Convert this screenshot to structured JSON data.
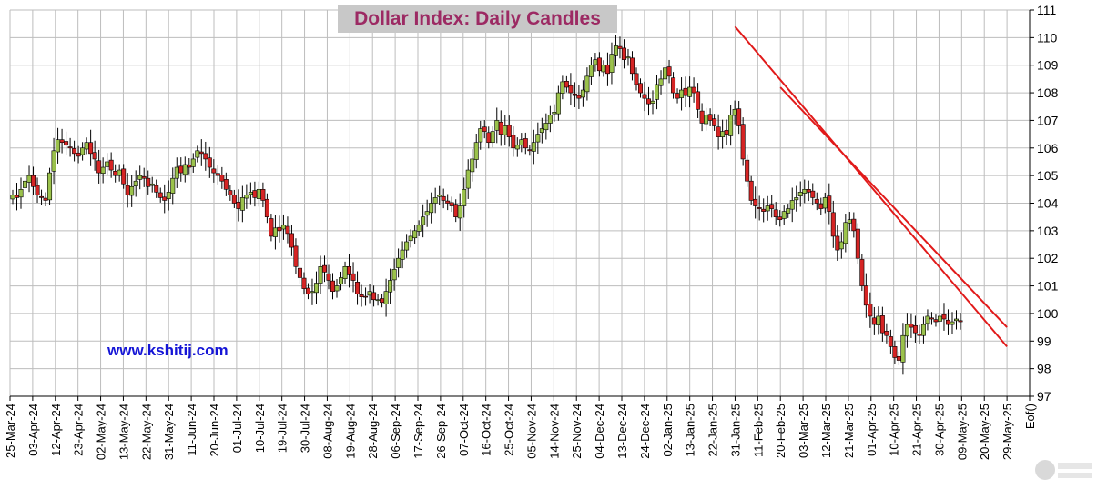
{
  "chart_data": {
    "type": "candlestick",
    "title": "Dollar Index: Daily Candles",
    "annotation": "www.kshitij.com",
    "ylim": [
      97,
      111
    ],
    "yticks": [
      97,
      98,
      99,
      100,
      101,
      102,
      103,
      104,
      105,
      106,
      107,
      108,
      109,
      110,
      111
    ],
    "xtick_labels": [
      "25-Mar-24",
      "03-Apr-24",
      "12-Apr-24",
      "23-Apr-24",
      "02-May-24",
      "13-May-24",
      "22-May-24",
      "31-May-24",
      "11-Jun-24",
      "20-Jun-24",
      "01-Jul-24",
      "10-Jul-24",
      "19-Jul-24",
      "30-Jul-24",
      "08-Aug-24",
      "19-Aug-24",
      "28-Aug-24",
      "06-Sep-24",
      "17-Sep-24",
      "26-Sep-24",
      "07-Oct-24",
      "16-Oct-24",
      "25-Oct-24",
      "05-Nov-24",
      "14-Nov-24",
      "25-Nov-24",
      "04-Dec-24",
      "13-Dec-24",
      "24-Dec-24",
      "02-Jan-25",
      "13-Jan-25",
      "22-Jan-25",
      "31-Jan-25",
      "11-Feb-25",
      "20-Feb-25",
      "03-Mar-25",
      "12-Mar-25",
      "21-Mar-25",
      "01-Apr-25",
      "10-Apr-25",
      "21-Apr-25",
      "30-Apr-25",
      "09-May-25",
      "20-May-25",
      "29-May-25"
    ],
    "last_xtick_label": "Eof()",
    "colors": {
      "up": "#9bc24c",
      "down": "#d52424",
      "trendline": "#e11a1a",
      "grid": "#bdbdbd"
    },
    "grid": true,
    "closes": [
      104.3,
      104.2,
      104.5,
      104.8,
      105.0,
      104.6,
      104.3,
      104.2,
      104.1,
      105.1,
      105.9,
      106.3,
      106.2,
      106.1,
      106.0,
      105.8,
      105.7,
      106.0,
      106.2,
      105.8,
      105.6,
      105.1,
      105.3,
      105.5,
      105.2,
      105.0,
      105.2,
      104.7,
      104.3,
      104.6,
      104.8,
      105.0,
      104.9,
      104.6,
      104.7,
      104.4,
      104.2,
      104.1,
      104.4,
      104.9,
      105.3,
      105.1,
      105.4,
      105.3,
      105.6,
      105.9,
      105.8,
      105.6,
      105.3,
      105.1,
      105.0,
      104.8,
      104.5,
      104.3,
      104.0,
      103.8,
      104.2,
      104.3,
      104.4,
      104.2,
      104.5,
      104.1,
      103.5,
      102.8,
      103.1,
      103.0,
      103.2,
      102.9,
      102.4,
      101.7,
      101.3,
      100.9,
      100.7,
      100.8,
      101.1,
      101.7,
      101.5,
      101.2,
      100.8,
      101.0,
      101.3,
      101.7,
      101.4,
      101.2,
      100.7,
      100.6,
      100.6,
      100.8,
      100.5,
      100.5,
      100.4,
      100.8,
      101.2,
      101.6,
      102.0,
      102.3,
      102.6,
      102.8,
      103.0,
      103.2,
      103.5,
      103.7,
      104.0,
      104.2,
      104.3,
      104.1,
      104.0,
      103.9,
      103.5,
      103.9,
      104.5,
      105.2,
      105.6,
      106.2,
      106.7,
      106.6,
      106.2,
      106.6,
      107.0,
      106.5,
      106.8,
      106.4,
      106.0,
      106.1,
      106.3,
      106.0,
      105.9,
      106.2,
      106.5,
      106.7,
      106.9,
      107.2,
      107.3,
      108.0,
      108.4,
      108.2,
      108.0,
      107.9,
      107.8,
      108.1,
      108.6,
      109.0,
      109.2,
      108.8,
      109.0,
      108.7,
      109.4,
      109.7,
      109.6,
      109.2,
      109.3,
      108.7,
      108.3,
      108.0,
      107.8,
      107.6,
      107.7,
      108.3,
      108.5,
      108.9,
      108.6,
      108.0,
      107.8,
      108.1,
      107.9,
      108.2,
      108.0,
      107.4,
      106.9,
      107.2,
      107.0,
      106.8,
      106.4,
      106.6,
      106.5,
      107.2,
      107.4,
      106.8,
      105.6,
      104.8,
      104.1,
      103.9,
      103.8,
      103.7,
      103.9,
      103.8,
      103.5,
      103.4,
      103.7,
      103.8,
      104.1,
      104.2,
      104.4,
      104.5,
      104.4,
      104.2,
      104.0,
      103.8,
      104.2,
      103.7,
      102.8,
      102.3,
      102.6,
      103.3,
      103.4,
      103.0,
      102.0,
      101.0,
      100.3,
      99.9,
      99.6,
      99.9,
      99.3,
      99.2,
      98.8,
      98.4,
      98.3,
      99.2,
      99.6,
      99.5,
      99.3,
      99.2,
      99.6,
      99.9,
      99.8,
      99.7,
      99.9,
      99.8,
      99.6,
      99.7,
      99.8,
      99.7
    ],
    "trendlines": [
      {
        "start_x": "31-Jan-25",
        "start_y": 110.4,
        "end_x": "29-May-25",
        "end_y": 98.8
      },
      {
        "start_x": "20-Feb-25",
        "start_y": 108.2,
        "end_x": "29-May-25",
        "end_y": 99.5
      }
    ]
  }
}
